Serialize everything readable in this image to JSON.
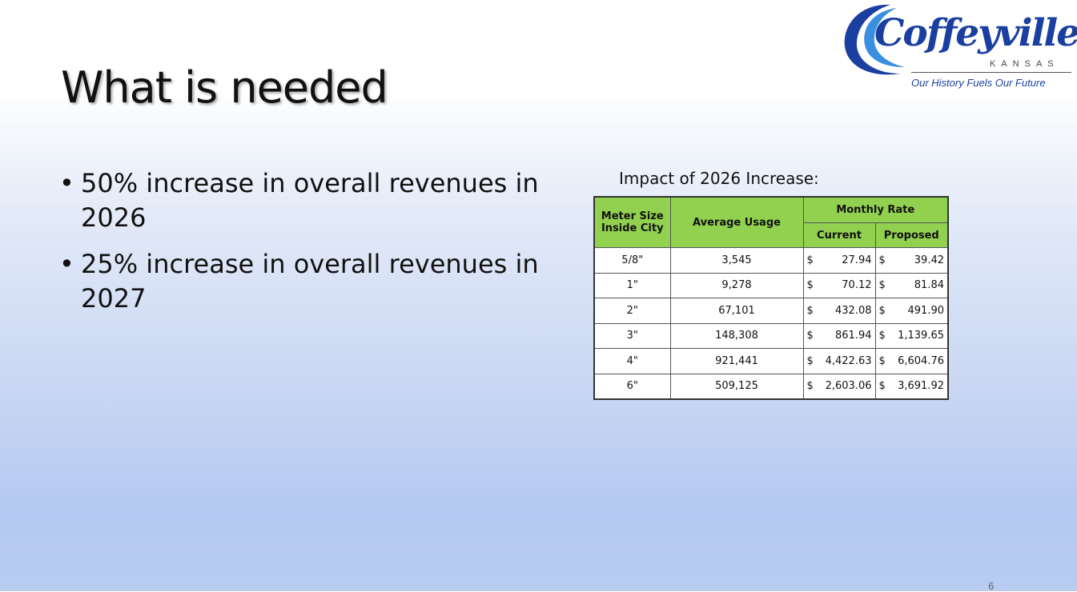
{
  "slide": {
    "title": "What is needed",
    "page_number": "6",
    "bullets": [
      "50% increase in overall revenues in 2026",
      "25% increase in overall revenues in 2027"
    ],
    "bullet_marker": "•"
  },
  "logo": {
    "name": "Coffeyville",
    "state": "KANSAS",
    "tagline": "Our History Fuels Our Future",
    "colors": {
      "blue": "#1b3fa0",
      "light_blue": "#3a8fe0"
    }
  },
  "table": {
    "caption": "Impact of 2026 Increase:",
    "headers": {
      "meter_size": "Meter Size Inside City",
      "average_usage": "Average Usage",
      "monthly_rate": "Monthly Rate",
      "current": "Current",
      "proposed": "Proposed"
    },
    "currency_symbol": "$",
    "rows": [
      {
        "size": "5/8\"",
        "usage": "3,545",
        "current": "27.94",
        "proposed": "39.42"
      },
      {
        "size": "1\"",
        "usage": "9,278",
        "current": "70.12",
        "proposed": "81.84"
      },
      {
        "size": "2\"",
        "usage": "67,101",
        "current": "432.08",
        "proposed": "491.90"
      },
      {
        "size": "3\"",
        "usage": "148,308",
        "current": "861.94",
        "proposed": "1,139.65"
      },
      {
        "size": "4\"",
        "usage": "921,441",
        "current": "4,422.63",
        "proposed": "6,604.76"
      },
      {
        "size": "6\"",
        "usage": "509,125",
        "current": "2,603.06",
        "proposed": "3,691.92"
      }
    ],
    "header_color": "#92d050"
  }
}
